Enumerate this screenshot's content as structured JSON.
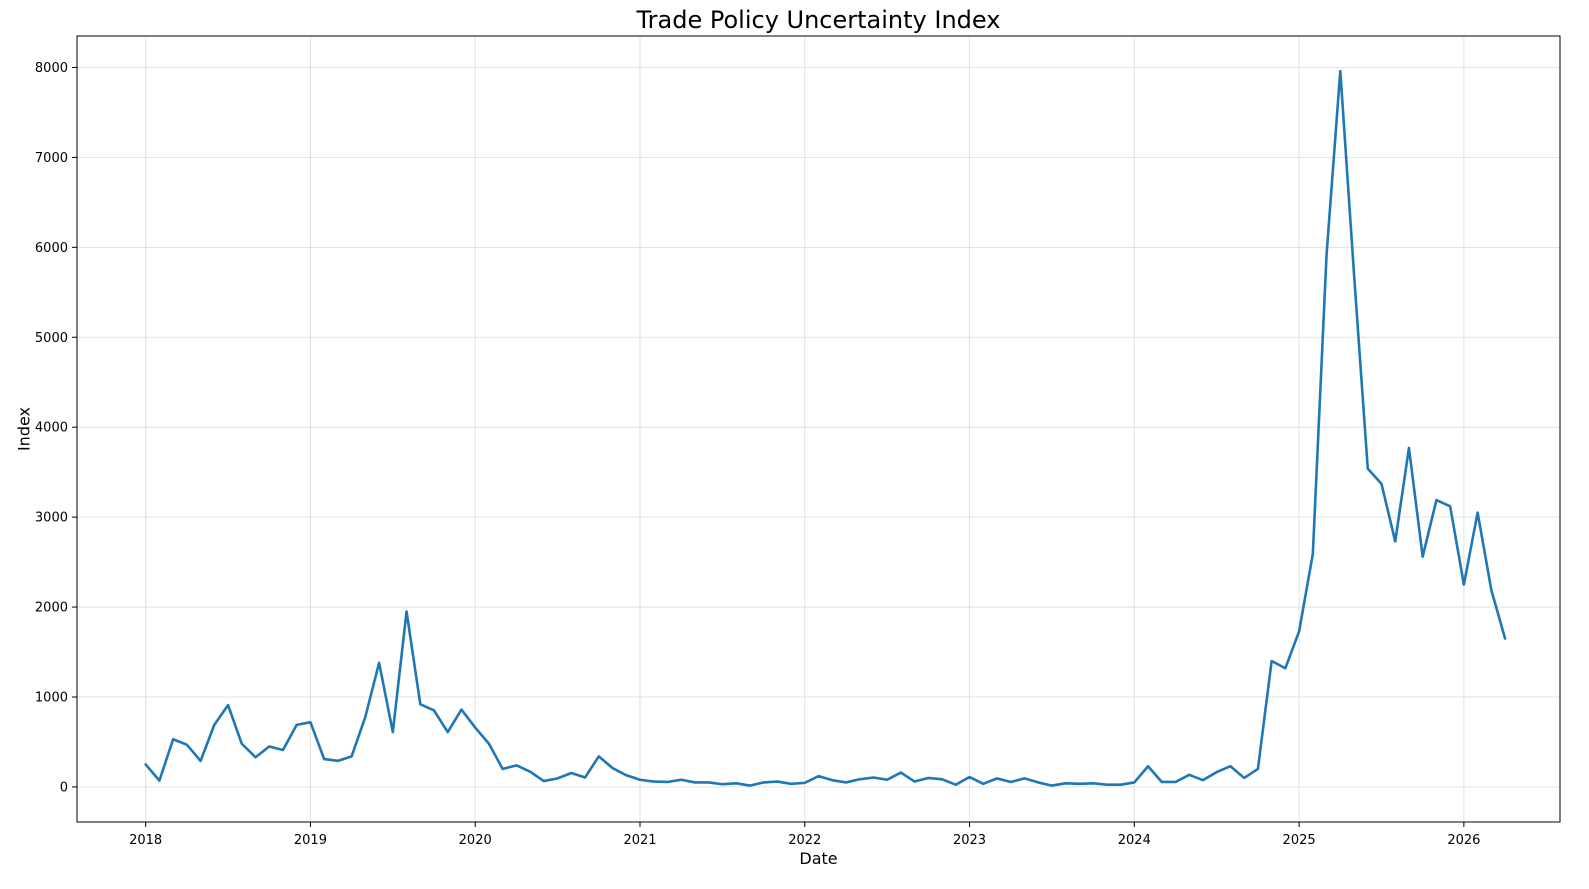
{
  "chart_data": {
    "type": "line",
    "title": "Trade Policy Uncertainty Index",
    "xlabel": "Date",
    "ylabel": "Index",
    "x_ticks": [
      "2018",
      "2019",
      "2020",
      "2021",
      "2022",
      "2023",
      "2024",
      "2025",
      "2026"
    ],
    "y_ticks": [
      0,
      1000,
      2000,
      3000,
      4000,
      5000,
      6000,
      7000,
      8000
    ],
    "xlim": [
      "2017-08",
      "2026-08"
    ],
    "ylim": [
      -390,
      8350
    ],
    "grid": true,
    "line_color": "#1f77b4",
    "series": [
      {
        "x": [
          "2018-01",
          "2018-02",
          "2018-03",
          "2018-04",
          "2018-05",
          "2018-06",
          "2018-07",
          "2018-08",
          "2018-09",
          "2018-10",
          "2018-11",
          "2018-12",
          "2019-01",
          "2019-02",
          "2019-03",
          "2019-04",
          "2019-05",
          "2019-06",
          "2019-07",
          "2019-08",
          "2019-09",
          "2019-10",
          "2019-11",
          "2019-12",
          "2020-01",
          "2020-02",
          "2020-03",
          "2020-04",
          "2020-05",
          "2020-06",
          "2020-07",
          "2020-08",
          "2020-09",
          "2020-10",
          "2020-11",
          "2020-12",
          "2021-01",
          "2021-02",
          "2021-03",
          "2021-04",
          "2021-05",
          "2021-06",
          "2021-07",
          "2021-08",
          "2021-09",
          "2021-10",
          "2021-11",
          "2021-12",
          "2022-01",
          "2022-02",
          "2022-03",
          "2022-04",
          "2022-05",
          "2022-06",
          "2022-07",
          "2022-08",
          "2022-09",
          "2022-10",
          "2022-11",
          "2022-12",
          "2023-01",
          "2023-02",
          "2023-03",
          "2023-04",
          "2023-05",
          "2023-06",
          "2023-07",
          "2023-08",
          "2023-09",
          "2023-10",
          "2023-11",
          "2023-12",
          "2024-01",
          "2024-02",
          "2024-03",
          "2024-04",
          "2024-05",
          "2024-06",
          "2024-07",
          "2024-08",
          "2024-09",
          "2024-10",
          "2024-11",
          "2024-12",
          "2025-01",
          "2025-02",
          "2025-03",
          "2025-04",
          "2025-05",
          "2025-06",
          "2025-07",
          "2025-08",
          "2025-09",
          "2025-10",
          "2025-11",
          "2025-12",
          "2026-01",
          "2026-02",
          "2026-03",
          "2026-04"
        ],
        "y": [
          250,
          70,
          530,
          470,
          290,
          690,
          910,
          480,
          330,
          450,
          410,
          690,
          720,
          310,
          290,
          340,
          780,
          1380,
          610,
          1950,
          920,
          850,
          610,
          860,
          660,
          480,
          200,
          240,
          170,
          65,
          95,
          155,
          105,
          340,
          210,
          130,
          80,
          60,
          55,
          80,
          50,
          50,
          30,
          40,
          15,
          50,
          60,
          35,
          45,
          120,
          75,
          50,
          85,
          105,
          80,
          160,
          60,
          100,
          85,
          25,
          110,
          35,
          95,
          55,
          95,
          50,
          15,
          40,
          35,
          40,
          25,
          25,
          50,
          230,
          55,
          55,
          135,
          75,
          165,
          230,
          100,
          200,
          1400,
          1320,
          1730,
          2590,
          5920,
          7960,
          5700,
          3540,
          3370,
          2730,
          3770,
          2560,
          3190,
          3120,
          2250,
          3050,
          2190,
          1650
        ]
      }
    ]
  }
}
